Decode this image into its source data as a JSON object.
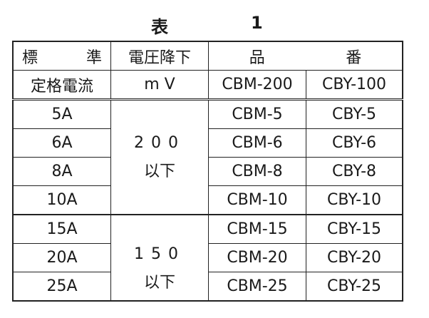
{
  "title": {
    "prefix": "表",
    "number": "1"
  },
  "header": {
    "col0_line1_a": "標",
    "col0_line1_b": "準",
    "col0_line2": "定格電流",
    "col1_line1": "電圧降下",
    "col1_line2": "m V",
    "product_a": "品",
    "product_b": "番",
    "sub_cbm": "CBM-200",
    "sub_cby": "CBY-100"
  },
  "groups": [
    {
      "voltage": "200",
      "suffix": "以下"
    },
    {
      "voltage": "150",
      "suffix": "以下"
    }
  ],
  "rows": [
    {
      "current": "5A",
      "cbm": "CBM-5",
      "cby": "CBY-5"
    },
    {
      "current": "6A",
      "cbm": "CBM-6",
      "cby": "CBY-6"
    },
    {
      "current": "8A",
      "cbm": "CBM-8",
      "cby": "CBY-8"
    },
    {
      "current": "10A",
      "cbm": "CBM-10",
      "cby": "CBY-10"
    },
    {
      "current": "15A",
      "cbm": "CBM-15",
      "cby": "CBY-15"
    },
    {
      "current": "20A",
      "cbm": "CBM-20",
      "cby": "CBY-20"
    },
    {
      "current": "25A",
      "cbm": "CBM-25",
      "cby": "CBY-25"
    }
  ]
}
